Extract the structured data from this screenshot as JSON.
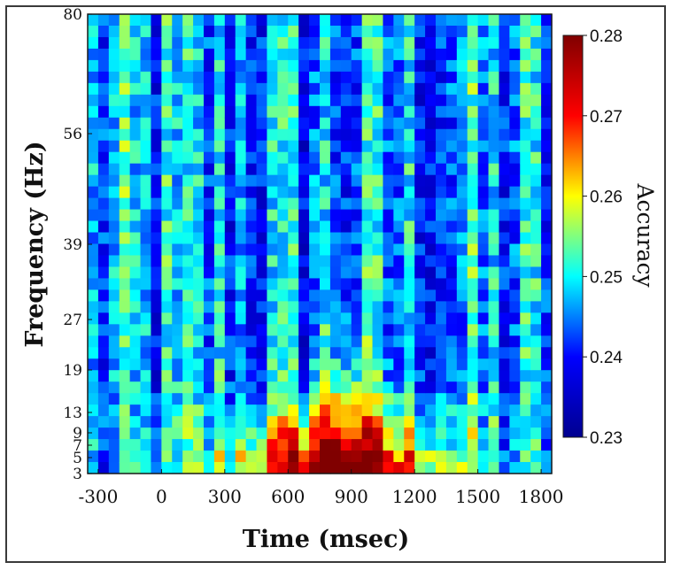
{
  "chart_data": {
    "type": "heatmap",
    "title": "",
    "xlabel": "Time (msec)",
    "ylabel": "Frequency (Hz)",
    "colorbar_label": "Accuracy",
    "x_tick_labels": [
      "-300",
      "0",
      "300",
      "600",
      "900",
      "1200",
      "1500",
      "1800"
    ],
    "x_tick_values": [
      -300,
      0,
      300,
      600,
      900,
      1200,
      1500,
      1800
    ],
    "xlim": [
      -350,
      1850
    ],
    "y_tick_labels": [
      "3",
      "5",
      "7",
      "9",
      "13",
      "19",
      "27",
      "39",
      "56",
      "80"
    ],
    "y_tick_values": [
      3,
      5,
      7,
      9,
      13,
      19,
      27,
      39,
      56,
      80
    ],
    "ylim": [
      3,
      80
    ],
    "colorbar_tick_labels": [
      "0.28",
      "0.27",
      "0.26",
      "0.25",
      "0.24",
      "0.23"
    ],
    "colorbar_range": [
      0.23,
      0.28
    ],
    "colormap": "jet",
    "colormap_colors": [
      "#00008f",
      "#0000ff",
      "#00ffff",
      "#ffff00",
      "#ff0000",
      "#800000"
    ],
    "peak": {
      "time_ms": 850,
      "frequency_hz": 6,
      "accuracy": 0.278
    },
    "grid": false
  }
}
